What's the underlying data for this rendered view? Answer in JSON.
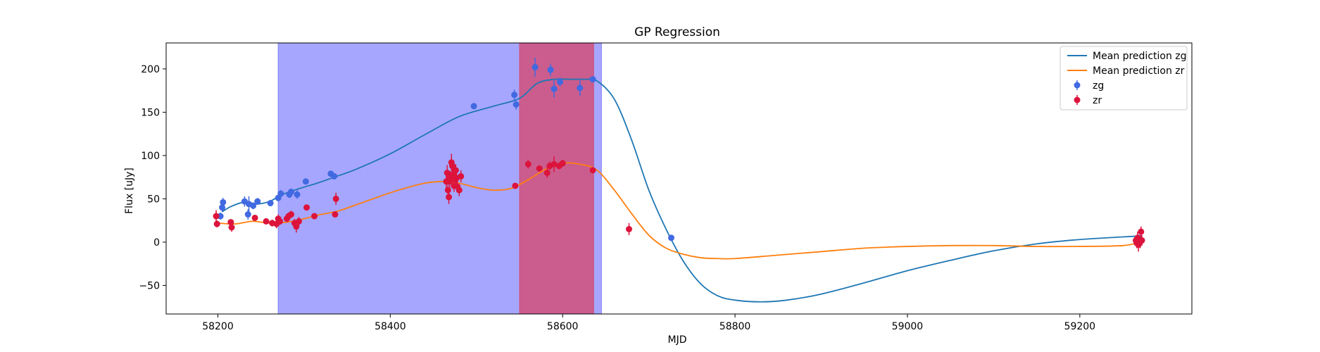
{
  "chart_data": {
    "type": "scatter",
    "title": "GP Regression",
    "xlabel": "MJD",
    "ylabel": "Flux [uJy]",
    "xlim": [
      58140,
      59330
    ],
    "ylim": [
      -83,
      230
    ],
    "xticks": [
      58200,
      58400,
      58600,
      58800,
      59000,
      59200
    ],
    "yticks": [
      -50,
      0,
      50,
      100,
      150,
      200
    ],
    "grid": false,
    "legend_position": "top-right",
    "shaded_regions": [
      {
        "x0": 58270,
        "x1": 58645,
        "color": "#8080ff",
        "opacity": 0.7
      },
      {
        "x0": 58550,
        "x1": 58636,
        "color": "#d0507a",
        "opacity": 0.85
      }
    ],
    "series": [
      {
        "name": "Mean prediction zg",
        "kind": "line",
        "color": "#1f77b4",
        "x": [
          58205,
          58215,
          58230,
          58245,
          58260,
          58275,
          58295,
          58315,
          58335,
          58360,
          58400,
          58440,
          58480,
          58520,
          58550,
          58570,
          58590,
          58610,
          58625,
          58640,
          58660,
          58680,
          58700,
          58720,
          58740,
          58760,
          58780,
          58800,
          58830,
          58860,
          58900,
          58950,
          59000,
          59050,
          59100,
          59150,
          59200,
          59250,
          59270
        ],
        "y": [
          35,
          41,
          46,
          44,
          47,
          55,
          62,
          68,
          75,
          84,
          102,
          124,
          145,
          157,
          166,
          183,
          188,
          188,
          188,
          186,
          165,
          118,
          60,
          15,
          -22,
          -48,
          -62,
          -67,
          -69,
          -67,
          -60,
          -47,
          -33,
          -21,
          -10,
          -2,
          3,
          6,
          7
        ]
      },
      {
        "name": "Mean prediction zr",
        "kind": "line",
        "color": "#ff7f0e",
        "x": [
          58200,
          58220,
          58240,
          58260,
          58280,
          58300,
          58320,
          58340,
          58360,
          58380,
          58400,
          58420,
          58440,
          58460,
          58480,
          58500,
          58520,
          58540,
          58560,
          58580,
          58600,
          58620,
          58640,
          58660,
          58680,
          58700,
          58720,
          58740,
          58760,
          58780,
          58800,
          58850,
          58900,
          58950,
          59000,
          59050,
          59100,
          59150,
          59200,
          59250,
          59270
        ],
        "y": [
          22,
          21,
          24,
          22,
          23,
          27,
          32,
          36,
          43,
          50,
          57,
          63,
          68,
          70,
          68,
          63,
          60,
          62,
          72,
          84,
          91,
          90,
          83,
          60,
          33,
          8,
          -7,
          -14,
          -18,
          -19,
          -19,
          -15,
          -11,
          -7,
          -5,
          -4,
          -4,
          -5,
          -5,
          -4,
          0
        ]
      },
      {
        "name": "zg",
        "kind": "scatter",
        "color": "#4169e1",
        "x": [
          58203,
          58205,
          58206,
          58231,
          58235,
          58236,
          58241,
          58246,
          58261,
          58270,
          58273,
          58283,
          58285,
          58292,
          58302,
          58331,
          58335,
          58497,
          58544,
          58546,
          58568,
          58586,
          58590,
          58597,
          58620,
          58635,
          58726,
          59268
        ],
        "y": [
          30,
          40,
          46,
          47,
          32,
          44,
          42,
          47,
          45,
          51,
          56,
          55,
          58,
          55,
          70,
          79,
          76,
          157,
          170,
          159,
          202,
          199,
          177,
          185,
          178,
          188,
          5,
          5
        ],
        "yerr": [
          4,
          5,
          5,
          6,
          6,
          9,
          4,
          4,
          3,
          4,
          4,
          4,
          4,
          5,
          3,
          3,
          3,
          3,
          6,
          6,
          11,
          7,
          10,
          5,
          9,
          3,
          3,
          3
        ]
      },
      {
        "name": "zr",
        "kind": "scatter",
        "color": "#dc143c",
        "x": [
          58198,
          58199,
          58215,
          58216,
          58243,
          58256,
          58263,
          58268,
          58270,
          58272,
          58280,
          58282,
          58285,
          58289,
          58291,
          58294,
          58303,
          58312,
          58336,
          58337,
          58465,
          58466,
          58467,
          58468,
          58469,
          58470,
          58471,
          58472,
          58473,
          58474,
          58475,
          58476,
          58477,
          58478,
          58480,
          58482,
          58545,
          58560,
          58573,
          58582,
          58585,
          58590,
          58596,
          58600,
          58635,
          58677,
          59265,
          59266,
          59267,
          59268,
          59270,
          59271,
          59272
        ],
        "y": [
          30,
          21,
          23,
          17,
          28,
          24,
          22,
          21,
          27,
          24,
          27,
          30,
          32,
          22,
          18,
          24,
          40,
          30,
          32,
          50,
          70,
          80,
          60,
          52,
          70,
          75,
          92,
          88,
          78,
          65,
          72,
          83,
          74,
          64,
          60,
          76,
          65,
          90,
          85,
          80,
          88,
          90,
          88,
          91,
          83,
          15,
          2,
          -1,
          5,
          -3,
          0,
          12,
          2
        ],
        "yerr": [
          7,
          4,
          3,
          5,
          3,
          3,
          4,
          5,
          5,
          4,
          4,
          4,
          4,
          5,
          7,
          5,
          3,
          3,
          3,
          7,
          10,
          9,
          10,
          8,
          7,
          7,
          10,
          7,
          7,
          7,
          7,
          7,
          7,
          7,
          7,
          7,
          3,
          5,
          3,
          6,
          5,
          9,
          4,
          4,
          3,
          7,
          5,
          6,
          7,
          8,
          7,
          6,
          6
        ]
      }
    ]
  }
}
